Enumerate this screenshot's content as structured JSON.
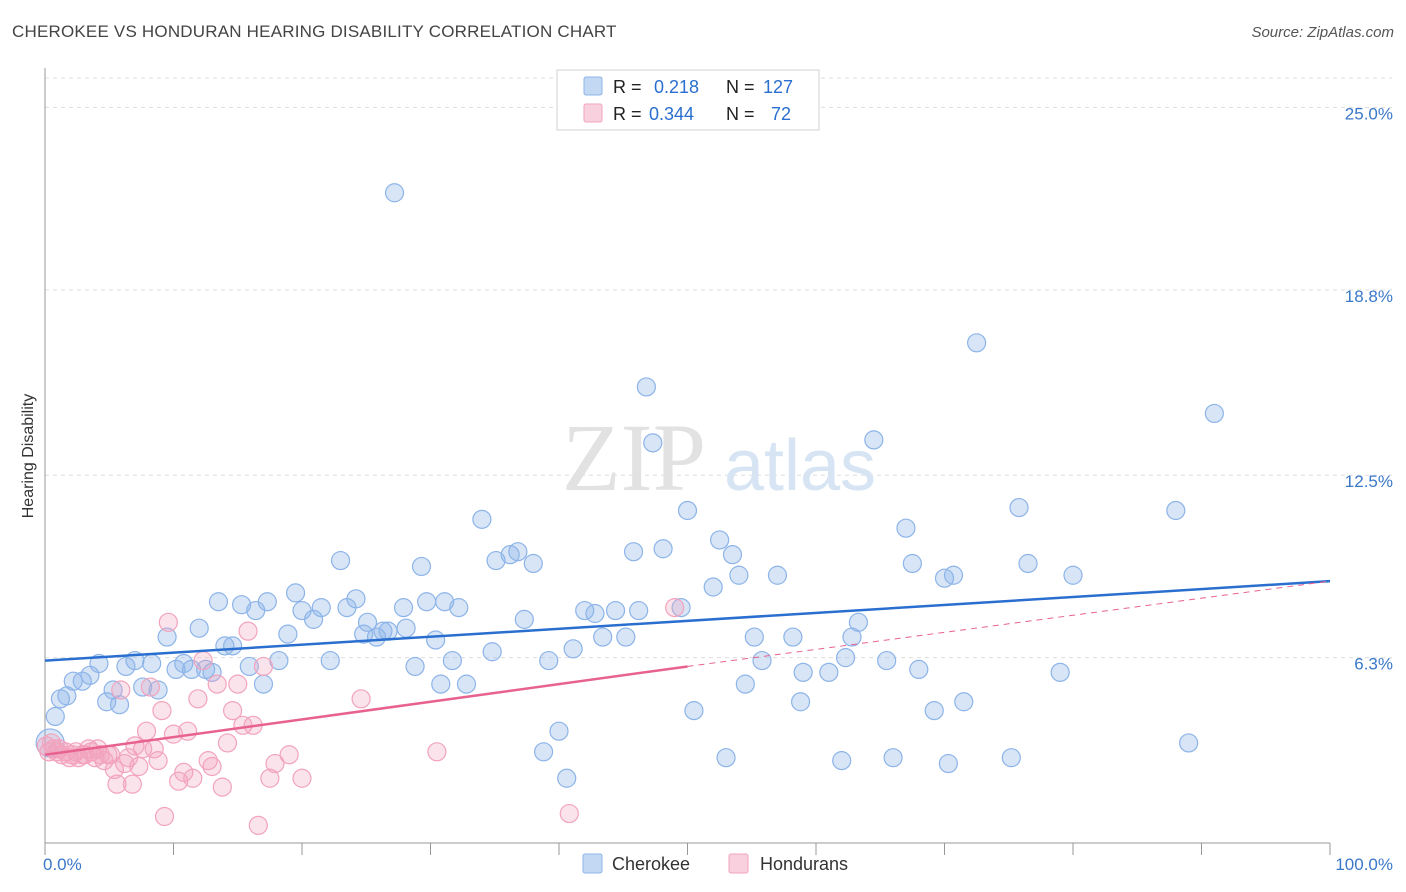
{
  "title": "CHEROKEE VS HONDURAN HEARING DISABILITY CORRELATION CHART",
  "source": "Source: ZipAtlas.com",
  "watermark": {
    "zip": "ZIP",
    "atlas": "atlas"
  },
  "legend_box": [
    {
      "r_label": "R =",
      "r_value": "0.218",
      "n_label": "N =",
      "n_value": "127",
      "color": "#8db4e8"
    },
    {
      "r_label": "R =",
      "r_value": "0.344",
      "n_label": "N =",
      "n_value": "72",
      "color": "#f2a3bd"
    }
  ],
  "chart_data": {
    "type": "scatter",
    "ylabel": "Hearing Disability",
    "xlabel": "",
    "xlim": [
      0,
      100
    ],
    "ylim": [
      0,
      26
    ],
    "x_tick_labels": [
      "0.0%",
      "100.0%"
    ],
    "y_ticks": [
      6.3,
      12.5,
      18.8,
      25.0
    ],
    "y_tick_labels": [
      "6.3%",
      "12.5%",
      "18.8%",
      "25.0%"
    ],
    "grid": true,
    "legend_position": "bottom-center",
    "series": [
      {
        "name": "Cherokee",
        "color": "#8db4e8",
        "line_color": "#2a6fcf",
        "trend": {
          "x": [
            0,
            100
          ],
          "y": [
            6.2,
            8.9
          ]
        },
        "points": [
          [
            0.4,
            3.4
          ],
          [
            0.8,
            4.3
          ],
          [
            1.2,
            4.9
          ],
          [
            1.7,
            5.0
          ],
          [
            2.2,
            5.5
          ],
          [
            2.9,
            5.5
          ],
          [
            3.5,
            5.7
          ],
          [
            4.2,
            6.1
          ],
          [
            4.8,
            4.8
          ],
          [
            5.3,
            5.2
          ],
          [
            5.8,
            4.7
          ],
          [
            6.3,
            6.0
          ],
          [
            7.0,
            6.2
          ],
          [
            7.6,
            5.3
          ],
          [
            8.3,
            6.1
          ],
          [
            8.8,
            5.2
          ],
          [
            9.5,
            7.0
          ],
          [
            10.2,
            5.9
          ],
          [
            10.8,
            6.1
          ],
          [
            11.4,
            5.9
          ],
          [
            12.0,
            7.3
          ],
          [
            12.5,
            5.9
          ],
          [
            13.0,
            5.8
          ],
          [
            13.5,
            8.2
          ],
          [
            14.0,
            6.7
          ],
          [
            14.6,
            6.7
          ],
          [
            15.3,
            8.1
          ],
          [
            15.9,
            6.0
          ],
          [
            16.4,
            7.9
          ],
          [
            17.0,
            5.4
          ],
          [
            17.3,
            8.2
          ],
          [
            18.2,
            6.2
          ],
          [
            18.9,
            7.1
          ],
          [
            19.5,
            8.5
          ],
          [
            20.0,
            7.9
          ],
          [
            20.9,
            7.6
          ],
          [
            21.5,
            8.0
          ],
          [
            22.2,
            6.2
          ],
          [
            23.0,
            9.6
          ],
          [
            23.5,
            8.0
          ],
          [
            24.2,
            8.3
          ],
          [
            24.8,
            7.1
          ],
          [
            25.1,
            7.5
          ],
          [
            25.8,
            7.0
          ],
          [
            26.3,
            7.2
          ],
          [
            26.7,
            7.2
          ],
          [
            27.2,
            22.1
          ],
          [
            27.9,
            8.0
          ],
          [
            28.1,
            7.3
          ],
          [
            28.8,
            6.0
          ],
          [
            29.3,
            9.4
          ],
          [
            29.7,
            8.2
          ],
          [
            30.4,
            6.9
          ],
          [
            30.8,
            5.4
          ],
          [
            31.1,
            8.2
          ],
          [
            31.7,
            6.2
          ],
          [
            32.2,
            8.0
          ],
          [
            32.8,
            5.4
          ],
          [
            34.0,
            11.0
          ],
          [
            34.8,
            6.5
          ],
          [
            35.1,
            9.6
          ],
          [
            36.2,
            9.8
          ],
          [
            36.8,
            9.9
          ],
          [
            37.3,
            7.6
          ],
          [
            38.0,
            9.5
          ],
          [
            38.8,
            3.1
          ],
          [
            39.2,
            6.2
          ],
          [
            40.0,
            3.8
          ],
          [
            40.6,
            2.2
          ],
          [
            41.1,
            6.6
          ],
          [
            42.0,
            7.9
          ],
          [
            42.8,
            7.8
          ],
          [
            43.4,
            7.0
          ],
          [
            44.4,
            7.9
          ],
          [
            45.2,
            7.0
          ],
          [
            45.8,
            9.9
          ],
          [
            46.2,
            7.9
          ],
          [
            46.8,
            15.5
          ],
          [
            47.3,
            13.6
          ],
          [
            48.1,
            10.0
          ],
          [
            49.5,
            8.0
          ],
          [
            50.0,
            11.3
          ],
          [
            50.5,
            4.5
          ],
          [
            52.0,
            8.7
          ],
          [
            52.5,
            10.3
          ],
          [
            53.0,
            2.9
          ],
          [
            53.5,
            9.8
          ],
          [
            54.0,
            9.1
          ],
          [
            54.5,
            5.4
          ],
          [
            55.2,
            7.0
          ],
          [
            55.8,
            6.2
          ],
          [
            57.0,
            9.1
          ],
          [
            58.2,
            7.0
          ],
          [
            58.8,
            4.8
          ],
          [
            59.0,
            5.8
          ],
          [
            61.0,
            5.8
          ],
          [
            62.0,
            2.8
          ],
          [
            62.3,
            6.3
          ],
          [
            62.8,
            7.0
          ],
          [
            63.3,
            7.5
          ],
          [
            64.5,
            13.7
          ],
          [
            65.5,
            6.2
          ],
          [
            66.0,
            2.9
          ],
          [
            67.0,
            10.7
          ],
          [
            67.5,
            9.5
          ],
          [
            68.0,
            5.9
          ],
          [
            69.2,
            4.5
          ],
          [
            70.0,
            9.0
          ],
          [
            70.3,
            2.7
          ],
          [
            70.7,
            9.1
          ],
          [
            71.5,
            4.8
          ],
          [
            72.5,
            17.0
          ],
          [
            75.2,
            2.9
          ],
          [
            75.8,
            11.4
          ],
          [
            76.5,
            9.5
          ],
          [
            79.0,
            5.8
          ],
          [
            80.0,
            9.1
          ],
          [
            88.0,
            11.3
          ],
          [
            89.0,
            3.4
          ],
          [
            91.0,
            14.6
          ]
        ]
      },
      {
        "name": "Hondurans",
        "color": "#f2a3bd",
        "line_color": "#e8628f",
        "trend": {
          "x": [
            0,
            50
          ],
          "y": [
            3.0,
            6.0
          ]
        },
        "trend_extension": {
          "x": [
            50,
            100
          ],
          "y": [
            6.0,
            8.9
          ]
        },
        "points": [
          [
            0.1,
            3.3
          ],
          [
            0.3,
            3.1
          ],
          [
            0.5,
            3.4
          ],
          [
            0.7,
            3.2
          ],
          [
            0.9,
            3.1
          ],
          [
            1.1,
            3.2
          ],
          [
            1.3,
            3.0
          ],
          [
            1.6,
            3.1
          ],
          [
            1.9,
            2.9
          ],
          [
            2.1,
            3.0
          ],
          [
            2.4,
            3.1
          ],
          [
            2.6,
            2.9
          ],
          [
            2.9,
            3.0
          ],
          [
            3.1,
            3.0
          ],
          [
            3.4,
            3.2
          ],
          [
            3.6,
            3.1
          ],
          [
            3.9,
            2.9
          ],
          [
            4.1,
            3.2
          ],
          [
            4.3,
            3.0
          ],
          [
            4.6,
            2.8
          ],
          [
            4.9,
            3.0
          ],
          [
            5.1,
            3.0
          ],
          [
            5.4,
            2.5
          ],
          [
            5.6,
            2.0
          ],
          [
            5.9,
            5.2
          ],
          [
            6.2,
            2.7
          ],
          [
            6.5,
            2.9
          ],
          [
            6.8,
            2.0
          ],
          [
            7.0,
            3.3
          ],
          [
            7.3,
            2.6
          ],
          [
            7.6,
            3.2
          ],
          [
            7.9,
            3.8
          ],
          [
            8.2,
            5.3
          ],
          [
            8.5,
            3.2
          ],
          [
            8.8,
            2.8
          ],
          [
            9.1,
            4.5
          ],
          [
            9.3,
            0.9
          ],
          [
            9.6,
            7.5
          ],
          [
            10.0,
            3.7
          ],
          [
            10.4,
            2.1
          ],
          [
            10.8,
            2.4
          ],
          [
            11.1,
            3.8
          ],
          [
            11.5,
            2.2
          ],
          [
            11.9,
            4.9
          ],
          [
            12.3,
            6.2
          ],
          [
            12.7,
            2.8
          ],
          [
            13.0,
            2.6
          ],
          [
            13.4,
            5.4
          ],
          [
            13.8,
            1.9
          ],
          [
            14.2,
            3.4
          ],
          [
            14.6,
            4.5
          ],
          [
            15.0,
            5.4
          ],
          [
            15.4,
            4.0
          ],
          [
            15.8,
            7.2
          ],
          [
            16.2,
            4.0
          ],
          [
            16.6,
            0.6
          ],
          [
            17.0,
            6.0
          ],
          [
            17.5,
            2.2
          ],
          [
            17.9,
            2.7
          ],
          [
            19.0,
            3.0
          ],
          [
            20.0,
            2.2
          ],
          [
            24.6,
            4.9
          ],
          [
            30.5,
            3.1
          ],
          [
            40.8,
            1.0
          ],
          [
            49.0,
            8.0
          ]
        ]
      }
    ]
  }
}
